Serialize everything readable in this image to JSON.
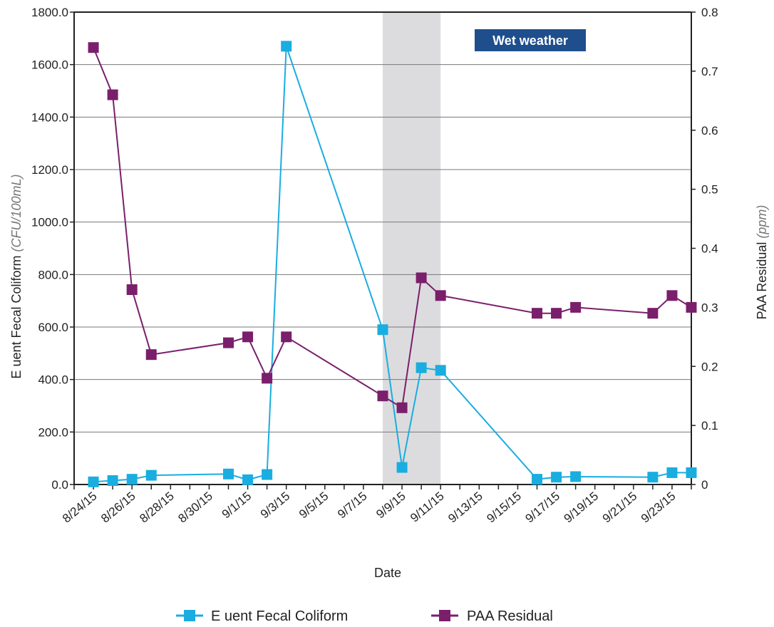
{
  "chart_data": {
    "type": "line",
    "xlabel": "Date",
    "ylabel_left": "E uent Fecal Coliform",
    "ylabel_left_units": "(CFU/100mL)",
    "ylabel_right": "PAA Residual",
    "ylabel_right_units": "(ppm)",
    "ylim_left": [
      0,
      1800
    ],
    "ylim_right": [
      0,
      0.8
    ],
    "yticks_left": [
      "0.0",
      "200.0",
      "400.0",
      "600.0",
      "800.0",
      "1000.0",
      "1200.0",
      "1400.0",
      "1600.0",
      "1800.0"
    ],
    "yticks_right": [
      "0",
      "0.1",
      "0.2",
      "0.3",
      "0.4",
      "0.5",
      "0.6",
      "0.7",
      "0.8"
    ],
    "xlim": [
      "2015-08-23",
      "2015-09-24"
    ],
    "xticks": [
      "8/24/15",
      "8/26/15",
      "8/28/15",
      "8/30/15",
      "9/1/15",
      "9/3/15",
      "9/5/15",
      "9/7/15",
      "9/9/15",
      "9/11/15",
      "9/13/15",
      "9/15/15",
      "9/17/15",
      "9/19/15",
      "9/21/15",
      "9/23/15"
    ],
    "grid": "horizontal",
    "legend_position": "bottom",
    "annotation": {
      "label": "Wet weather",
      "range": [
        "2015-09-08",
        "2015-09-11"
      ],
      "label_color": "#1f4e8c",
      "shade_color": "#dcdcde"
    },
    "series": [
      {
        "name": "E uent Fecal Coliform",
        "axis": "left",
        "color": "#1aade0",
        "marker": "square",
        "x": [
          "2015-08-24",
          "2015-08-25",
          "2015-08-26",
          "2015-08-27",
          "2015-08-31",
          "2015-09-01",
          "2015-09-02",
          "2015-09-03",
          "2015-09-08",
          "2015-09-09",
          "2015-09-10",
          "2015-09-11",
          "2015-09-16",
          "2015-09-17",
          "2015-09-18",
          "2015-09-22",
          "2015-09-23",
          "2015-09-24"
        ],
        "values": [
          10,
          15,
          20,
          35,
          40,
          18,
          38,
          1670,
          590,
          65,
          445,
          435,
          20,
          28,
          30,
          28,
          45,
          45
        ]
      },
      {
        "name": "PAA Residual",
        "axis": "right",
        "color": "#7a1f6b",
        "marker": "square",
        "x": [
          "2015-08-24",
          "2015-08-25",
          "2015-08-26",
          "2015-08-27",
          "2015-08-31",
          "2015-09-01",
          "2015-09-02",
          "2015-09-03",
          "2015-09-08",
          "2015-09-09",
          "2015-09-10",
          "2015-09-11",
          "2015-09-16",
          "2015-09-17",
          "2015-09-18",
          "2015-09-22",
          "2015-09-23",
          "2015-09-24"
        ],
        "values": [
          0.74,
          0.66,
          0.33,
          0.22,
          0.24,
          0.25,
          0.18,
          0.25,
          0.15,
          0.13,
          0.35,
          0.32,
          0.29,
          0.29,
          0.3,
          0.29,
          0.32,
          0.3
        ]
      }
    ]
  }
}
